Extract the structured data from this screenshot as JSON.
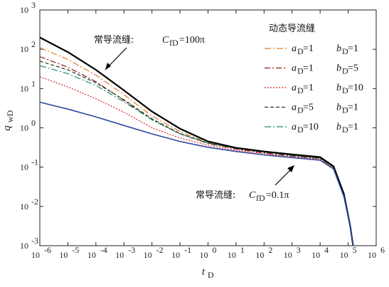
{
  "chart_data": {
    "type": "line",
    "xscale": "log",
    "yscale": "log",
    "xlim": [
      1e-06,
      1000000.0
    ],
    "ylim": [
      0.001,
      1000
    ],
    "xlabel": "tD",
    "ylabel": "qwD",
    "x_ticks": [
      -6,
      -5,
      -4,
      -3,
      -2,
      -1,
      0,
      1,
      2,
      3,
      4,
      5,
      6
    ],
    "y_ticks": [
      -3,
      -2,
      -1,
      0,
      1,
      2,
      3
    ],
    "legend_title": "动态导流缝",
    "legend_position": "top-right",
    "series": [
      {
        "name": "aD=1 bD=1",
        "a_label": "a",
        "a_value": "=1",
        "b_label": "b",
        "b_value": "=1",
        "color": "#e07a20",
        "dash": "9,3,2,3",
        "x": [
          1e-06,
          1e-05,
          0.0001,
          0.001,
          0.01,
          0.1,
          1,
          10,
          100,
          1000,
          10000,
          30000,
          70000,
          120000,
          150000
        ],
        "y": [
          110,
          55,
          22,
          7,
          2,
          0.8,
          0.42,
          0.3,
          0.24,
          0.2,
          0.17,
          0.1,
          0.02,
          0.003,
          0.001
        ]
      },
      {
        "name": "aD=1 bD=5",
        "a_label": "a",
        "a_value": "=1",
        "b_label": "b",
        "b_value": "=5",
        "color": "#8b1a1a",
        "dash": "8,3,2,3",
        "x": [
          1e-06,
          1e-05,
          0.0001,
          0.001,
          0.01,
          0.1,
          1,
          10,
          100,
          1000,
          10000,
          30000,
          70000,
          120000,
          150000
        ],
        "y": [
          65,
          35,
          15,
          5,
          1.6,
          0.7,
          0.4,
          0.29,
          0.23,
          0.19,
          0.165,
          0.098,
          0.02,
          0.003,
          0.001
        ]
      },
      {
        "name": "aD=1 bD=10",
        "a_label": "a",
        "a_value": "=1",
        "b_label": "b",
        "b_value": "=10",
        "color": "#e02020",
        "dash": "2,2",
        "x": [
          1e-06,
          1e-05,
          0.0001,
          0.001,
          0.01,
          0.1,
          1,
          10,
          100,
          1000,
          10000,
          30000,
          70000,
          120000,
          150000
        ],
        "y": [
          20,
          11,
          5.5,
          2.5,
          1.0,
          0.55,
          0.36,
          0.27,
          0.22,
          0.18,
          0.16,
          0.095,
          0.019,
          0.003,
          0.001
        ]
      },
      {
        "name": "aD=5 bD=1",
        "a_label": "a",
        "a_value": "=5",
        "b_label": "b",
        "b_value": "=1",
        "color": "#1f3f1f",
        "dash": "5,3",
        "x": [
          1e-06,
          1e-05,
          0.0001,
          0.001,
          0.01,
          0.1,
          1,
          10,
          100,
          1000,
          10000,
          30000,
          70000,
          120000,
          150000
        ],
        "y": [
          50,
          30,
          14,
          5.2,
          1.7,
          0.72,
          0.41,
          0.3,
          0.24,
          0.2,
          0.17,
          0.1,
          0.02,
          0.003,
          0.001
        ]
      },
      {
        "name": "aD=10 bD=1",
        "a_label": "a",
        "a_value": "=10",
        "b_label": "b",
        "b_value": "=1",
        "color": "#1e8c6e",
        "dash": "9,3,2,3",
        "x": [
          1e-06,
          1e-05,
          0.0001,
          0.001,
          0.01,
          0.1,
          1,
          10,
          100,
          1000,
          10000,
          30000,
          70000,
          120000,
          150000
        ],
        "y": [
          38,
          24,
          12,
          4.6,
          1.6,
          0.7,
          0.41,
          0.3,
          0.24,
          0.2,
          0.17,
          0.1,
          0.02,
          0.003,
          0.001
        ]
      },
      {
        "name": "常导流缝: CfD=100π",
        "color": "#000000",
        "dash": "",
        "width": 2.2,
        "x": [
          1e-06,
          1e-05,
          0.0001,
          0.001,
          0.01,
          0.1,
          1,
          10,
          100,
          1000,
          10000,
          30000,
          70000,
          120000,
          150000
        ],
        "y": [
          200,
          85,
          30,
          9,
          2.6,
          0.95,
          0.45,
          0.31,
          0.25,
          0.21,
          0.18,
          0.105,
          0.021,
          0.003,
          0.001
        ]
      },
      {
        "name": "常导流缝: CfD=0.1π",
        "color": "#2e48a0",
        "dash": "",
        "width": 1.6,
        "x": [
          1e-06,
          1e-05,
          0.0001,
          0.001,
          0.01,
          0.1,
          1,
          10,
          100,
          1000,
          10000,
          30000,
          70000,
          120000,
          150000
        ],
        "y": [
          4.5,
          3.0,
          1.9,
          1.15,
          0.7,
          0.45,
          0.32,
          0.25,
          0.205,
          0.175,
          0.15,
          0.09,
          0.018,
          0.003,
          0.001
        ]
      }
    ],
    "annotations": [
      {
        "text": "常导流缝:",
        "var": "C",
        "sub": "fD",
        "value": "=100π"
      },
      {
        "text": "常导流缝:",
        "var": "C",
        "sub": "fD",
        "value": "=0.1π"
      }
    ]
  }
}
